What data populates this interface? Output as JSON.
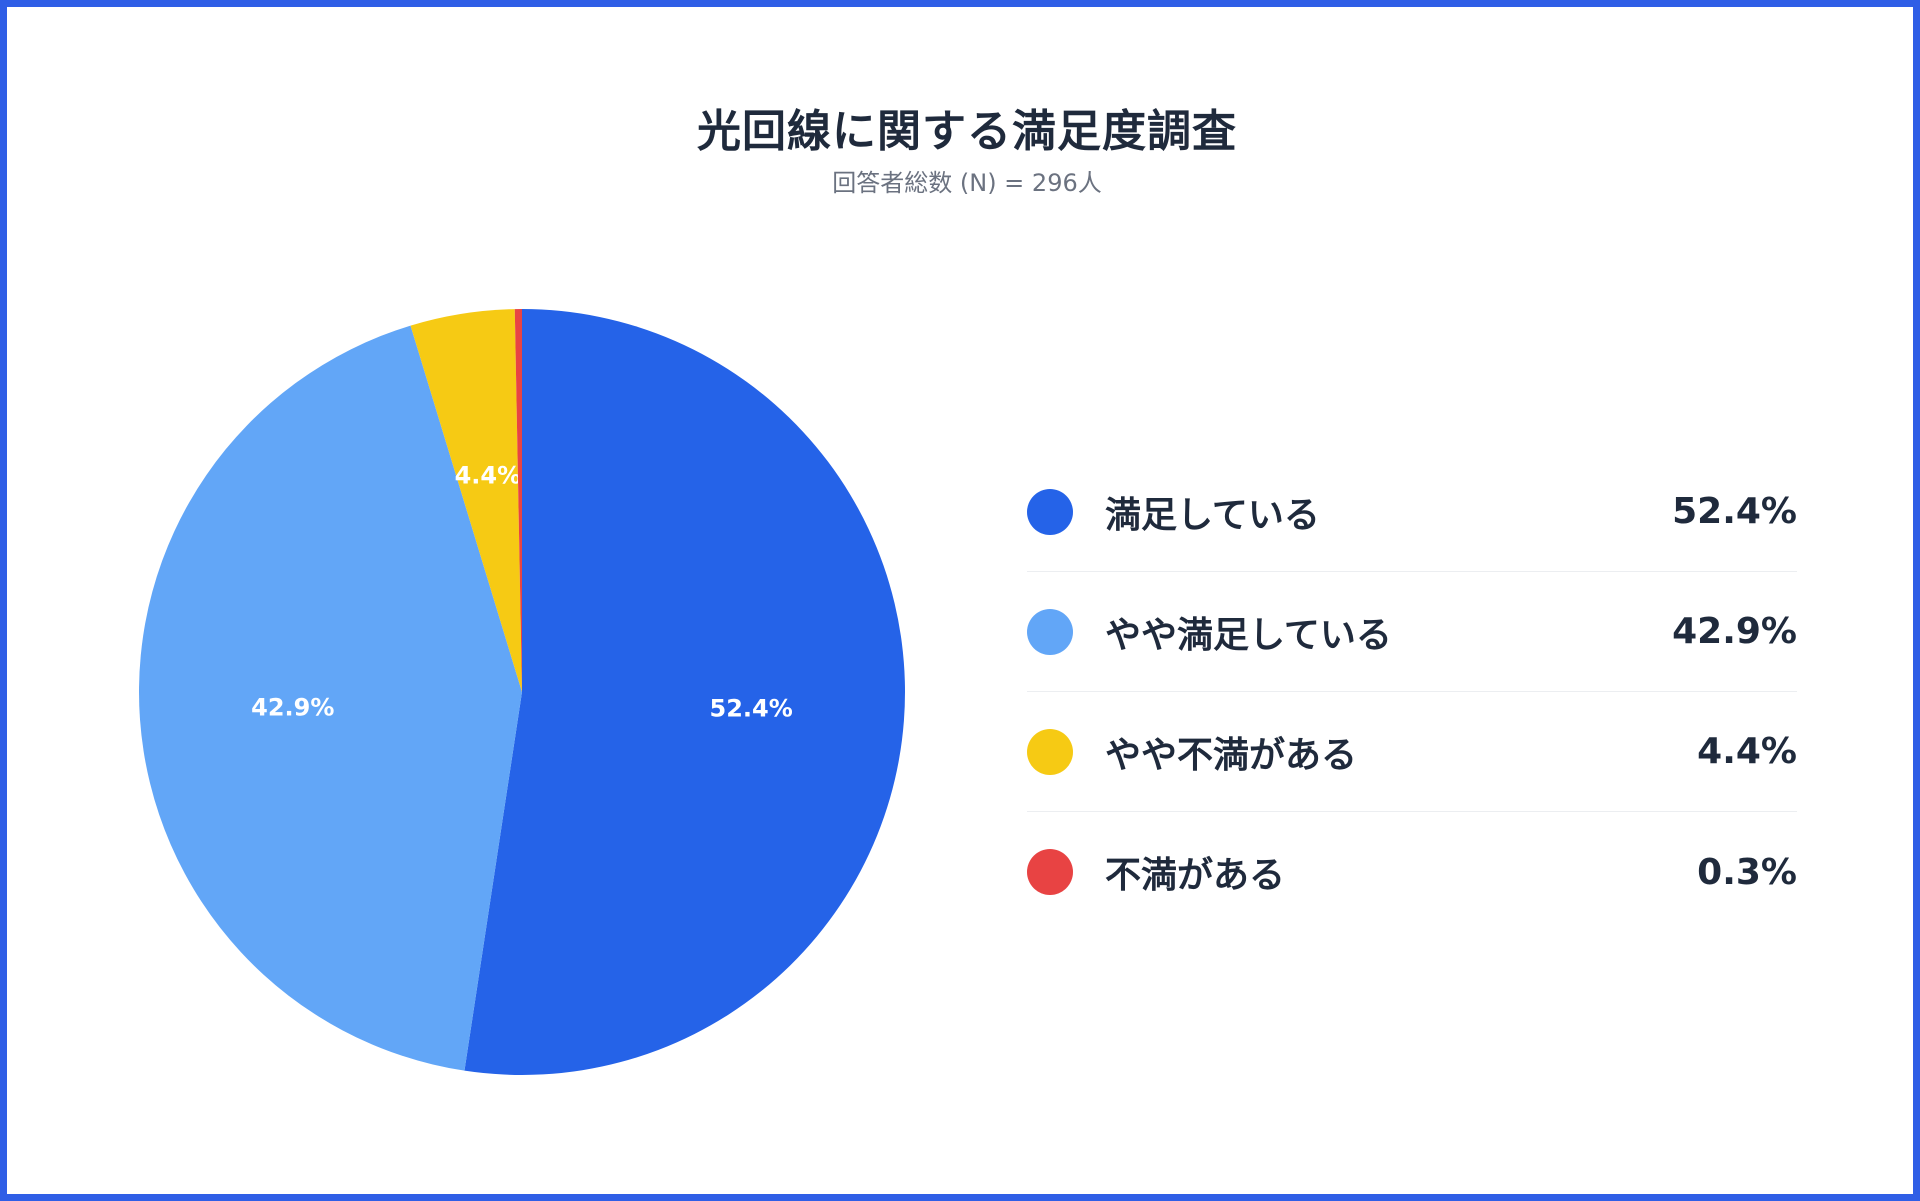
{
  "chart_data": {
    "type": "pie",
    "title": "光回線に関する満足度調査",
    "subtitle": "回答者総数 (N) = 296人",
    "categories": [
      "満足している",
      "やや満足している",
      "やや不満がある",
      "不満がある"
    ],
    "values": [
      52.4,
      42.9,
      4.4,
      0.3
    ],
    "value_labels": [
      "52.4%",
      "42.9%",
      "4.4%",
      "0.3%"
    ],
    "colors": [
      "#2563e8",
      "#62a6f7",
      "#f6ca14",
      "#e84343"
    ],
    "slice_labels": [
      "52.4%",
      "42.9%",
      "4.4%",
      ""
    ],
    "start_angle": "12 o'clock",
    "direction": "clockwise",
    "legend_position": "right"
  }
}
